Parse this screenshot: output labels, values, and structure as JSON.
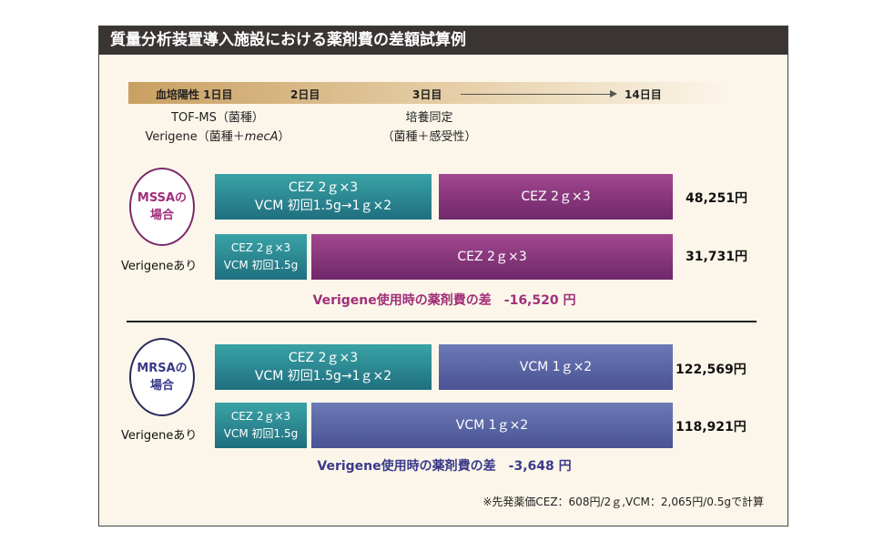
{
  "title": "質量分析装置導入施設における薬剤費の差額試算例",
  "timeline": {
    "day1": "血培陽性 1日目",
    "day2": "2日目",
    "day3": "3日目",
    "day14": "14日目"
  },
  "sub1": {
    "line1": "TOF-MS（菌種）",
    "line2_prefix": "Verigene（菌種＋",
    "line2_italic": "mecA",
    "line2_suffix": "）"
  },
  "sub3": {
    "line1": "培養同定",
    "line2": "（菌種＋感受性）"
  },
  "mssa": {
    "label_line1": "MSSAの",
    "label_line2": "場合",
    "row1": {
      "bar1_line1": "CEZ 2ｇ×3",
      "bar1_line2": "VCM 初回1.5g→1ｇ×2",
      "bar2": "CEZ 2ｇ×3",
      "amount": "48,251円"
    },
    "row2": {
      "label": "Verigeneあり",
      "bar1_line1": "CEZ 2ｇ×3",
      "bar1_line2": "VCM 初回1.5g",
      "bar2": "CEZ 2ｇ×3",
      "amount": "31,731円"
    },
    "diff": "Verigene使用時の薬剤費の差　-16,520 円"
  },
  "mrsa": {
    "label_line1": "MRSAの",
    "label_line2": "場合",
    "row1": {
      "bar1_line1": "CEZ 2ｇ×3",
      "bar1_line2": "VCM 初回1.5g→1ｇ×2",
      "bar2": "VCM 1ｇ×2",
      "amount": "122,569円"
    },
    "row2": {
      "label": "Verigeneあり",
      "bar1_line1": "CEZ 2ｇ×3",
      "bar1_line2": "VCM 初回1.5g",
      "bar2": "VCM 1ｇ×2",
      "amount": "118,921円"
    },
    "diff": "Verigene使用時の薬剤費の差　-3,648 円"
  },
  "note": "※先発薬価CEZ：608円/2ｇ,VCM：2,065円/0.5gで計算",
  "colors": {
    "mssa": "#a0307a",
    "mrsa": "#3a3a8a",
    "teal": "#2a8a92",
    "purple": "#8a3580",
    "blue": "#5a64a4"
  }
}
